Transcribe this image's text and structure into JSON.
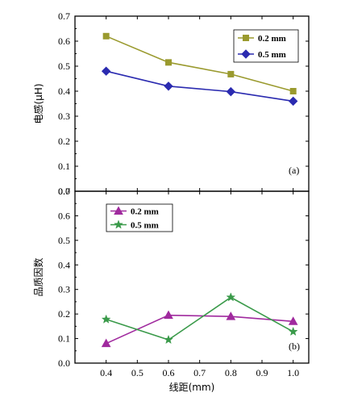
{
  "chart_data": [
    {
      "type": "line",
      "panel_label": "(a)",
      "ylabel": "电感(μH)",
      "xlabel": "",
      "x": [
        0.4,
        0.6,
        0.8,
        1.0
      ],
      "xlim": [
        0.3,
        1.05
      ],
      "ylim": [
        0.0,
        0.7
      ],
      "yticks": [
        "0.0",
        "0.1",
        "0.2",
        "0.3",
        "0.4",
        "0.5",
        "0.6",
        "0.7"
      ],
      "legend_position": "top-right",
      "series": [
        {
          "name": "0.2 mm",
          "values": [
            0.62,
            0.515,
            0.468,
            0.4
          ],
          "color": "#9a9a2e",
          "marker": "square"
        },
        {
          "name": "0.5 mm",
          "values": [
            0.48,
            0.42,
            0.398,
            0.36
          ],
          "color": "#2b2bb0",
          "marker": "diamond"
        }
      ]
    },
    {
      "type": "line",
      "panel_label": "(b)",
      "ylabel": "品质因数",
      "xlabel": "线距(mm)",
      "x": [
        0.4,
        0.6,
        0.8,
        1.0
      ],
      "xlim": [
        0.3,
        1.05
      ],
      "ylim": [
        0.0,
        0.7
      ],
      "yticks": [
        "0.0",
        "0.1",
        "0.2",
        "0.3",
        "0.4",
        "0.5",
        "0.6",
        "0.7"
      ],
      "xticks": [
        "0.4",
        "0.5",
        "0.6",
        "0.7",
        "0.8",
        "0.9",
        "1.0"
      ],
      "legend_position": "top-left",
      "series": [
        {
          "name": "0.2 mm",
          "values": [
            0.08,
            0.195,
            0.19,
            0.17
          ],
          "color": "#a02a9e",
          "marker": "triangle"
        },
        {
          "name": "0.5 mm",
          "values": [
            0.178,
            0.095,
            0.268,
            0.128
          ],
          "color": "#3a9a4a",
          "marker": "star"
        }
      ]
    }
  ]
}
